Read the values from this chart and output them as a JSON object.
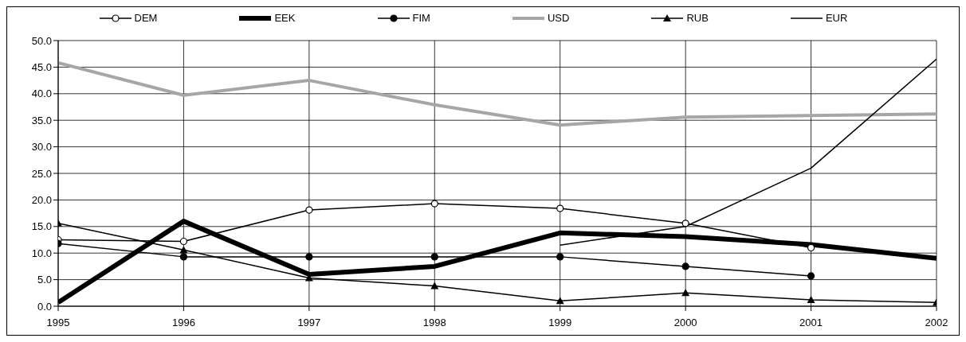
{
  "chart_data": {
    "type": "line",
    "x": [
      1995,
      1996,
      1997,
      1998,
      1999,
      2000,
      2001,
      2002
    ],
    "xlim": [
      1995,
      2002
    ],
    "xticks": [
      1995,
      1996,
      1997,
      1998,
      1999,
      2000,
      2001,
      2002
    ],
    "ylim": [
      0,
      50
    ],
    "yticks": [
      {
        "value": 0,
        "label": "0.0"
      },
      {
        "value": 5,
        "label": "5.0"
      },
      {
        "value": 10,
        "label": "10.0"
      },
      {
        "value": 15,
        "label": "15.0"
      },
      {
        "value": 20,
        "label": "20.0"
      },
      {
        "value": 25,
        "label": "25.0"
      },
      {
        "value": 30,
        "label": "30.0"
      },
      {
        "value": 35,
        "label": "35.0"
      },
      {
        "value": 40,
        "label": "40.0"
      },
      {
        "value": 45,
        "label": "45.0"
      },
      {
        "value": 50,
        "label": "50.0"
      }
    ],
    "grid": true,
    "legend": "top",
    "series": [
      {
        "name": "DEM",
        "color": "#000000",
        "marker": "circle",
        "values": [
          12.5,
          12.2,
          18.1,
          19.3,
          18.4,
          15.6,
          11.0,
          null
        ]
      },
      {
        "name": "EEK",
        "color": "#000000",
        "marker": "none",
        "values": [
          0.7,
          16.0,
          6.0,
          7.5,
          13.8,
          13.1,
          11.6,
          9.0
        ]
      },
      {
        "name": "FIM",
        "color": "#000000",
        "marker": "circle",
        "values": [
          11.8,
          9.3,
          9.3,
          9.3,
          9.3,
          7.5,
          5.7,
          null
        ]
      },
      {
        "name": "USD",
        "color": "#a6a6a6",
        "marker": "none",
        "values": [
          45.8,
          39.7,
          42.5,
          37.9,
          34.1,
          35.6,
          35.9,
          36.2
        ]
      },
      {
        "name": "RUB",
        "color": "#000000",
        "marker": "triangle",
        "values": [
          15.6,
          10.6,
          5.3,
          3.8,
          1.0,
          2.5,
          1.2,
          0.7
        ]
      },
      {
        "name": "EUR",
        "color": "#000000",
        "marker": "none",
        "values": [
          null,
          null,
          null,
          null,
          11.5,
          15.0,
          26.0,
          46.5
        ]
      }
    ]
  }
}
